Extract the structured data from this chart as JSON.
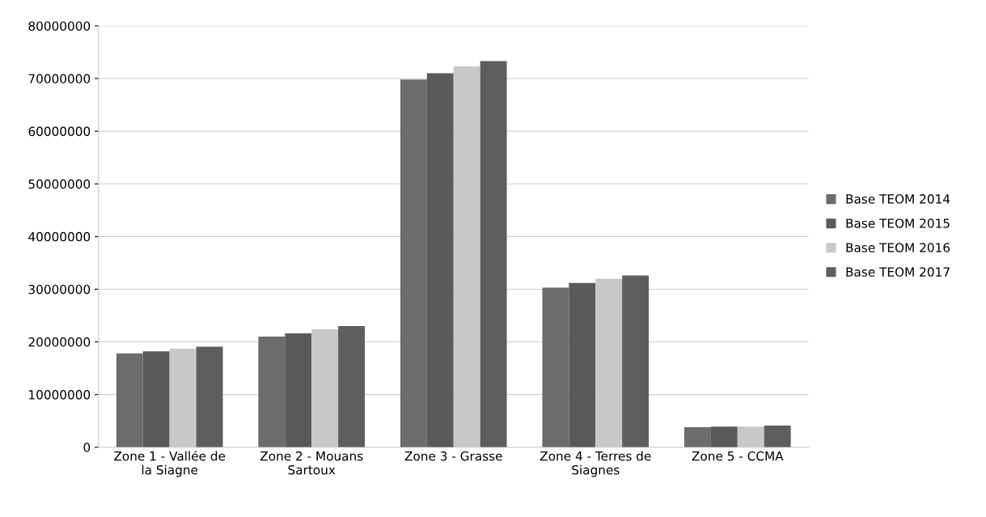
{
  "chart_data": {
    "type": "bar",
    "categories": [
      "Zone 1 - Vallée de\nla Siagne",
      "Zone 2 - Mouans\nSartoux",
      "Zone 3 - Grasse",
      "Zone 4 - Terres de\nSiagnes",
      "Zone 5 - CCMA"
    ],
    "series": [
      {
        "name": "Base TEOM 2014",
        "color": "#6c6c6c",
        "values": [
          17800000,
          21000000,
          69800000,
          30300000,
          3800000
        ]
      },
      {
        "name": "Base TEOM 2015",
        "color": "#5a5a5a",
        "values": [
          18200000,
          21600000,
          71000000,
          31200000,
          3900000
        ]
      },
      {
        "name": "Base TEOM 2016",
        "color": "#c8c8c8",
        "values": [
          18700000,
          22400000,
          72300000,
          32000000,
          3900000
        ]
      },
      {
        "name": "Base TEOM 2017",
        "color": "#5e5e5e",
        "values": [
          19100000,
          23000000,
          73300000,
          32600000,
          4100000
        ]
      }
    ],
    "ylim": [
      0,
      80000000
    ],
    "yticks": [
      0,
      10000000,
      20000000,
      30000000,
      40000000,
      50000000,
      60000000,
      70000000,
      80000000
    ],
    "grid": "y",
    "legend": "right"
  }
}
